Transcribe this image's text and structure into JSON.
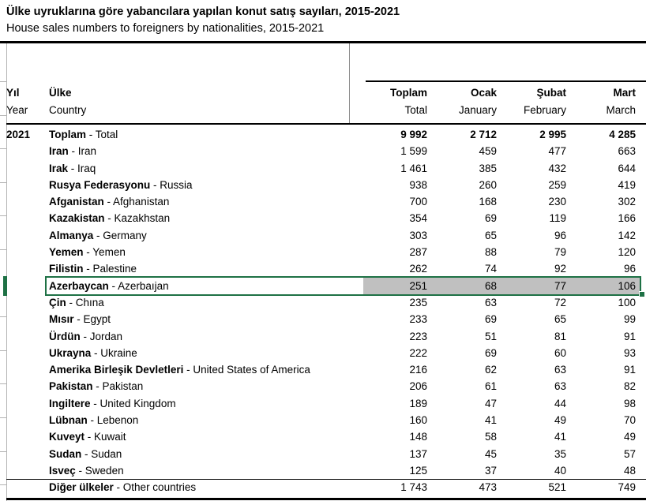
{
  "header": {
    "title_tr": "Ülke uyruklarına göre yabancılara yapılan konut satış sayıları, 2015-2021",
    "title_en": "House sales numbers to foreigners by nationalities, 2015-2021"
  },
  "table": {
    "col_year": {
      "tr": "Yıl",
      "en": "Year"
    },
    "col_country": {
      "tr": "Ülke",
      "en": "Country"
    },
    "col_values": [
      {
        "tr": "Toplam",
        "en": "Total"
      },
      {
        "tr": "Ocak",
        "en": "January"
      },
      {
        "tr": "Şubat",
        "en": "February"
      },
      {
        "tr": "Mart",
        "en": "March"
      }
    ],
    "rows": [
      {
        "year": "2021",
        "tr": "Toplam",
        "en": "Total",
        "values": [
          "9 992",
          "2 712",
          "2 995",
          "4 285"
        ],
        "total": true
      },
      {
        "tr": "Iran",
        "en": "Iran",
        "values": [
          "1 599",
          "459",
          "477",
          "663"
        ]
      },
      {
        "tr": "Irak",
        "en": "Iraq",
        "values": [
          "1 461",
          "385",
          "432",
          "644"
        ]
      },
      {
        "tr": "Rusya Federasyonu",
        "en": "Russia",
        "values": [
          "938",
          "260",
          "259",
          "419"
        ]
      },
      {
        "tr": "Afganistan",
        "en": "Afghanistan",
        "values": [
          "700",
          "168",
          "230",
          "302"
        ]
      },
      {
        "tr": "Kazakistan",
        "en": "Kazakhstan",
        "values": [
          "354",
          "69",
          "119",
          "166"
        ]
      },
      {
        "tr": "Almanya",
        "en": "Germany",
        "values": [
          "303",
          "65",
          "96",
          "142"
        ]
      },
      {
        "tr": "Yemen",
        "en": "Yemen",
        "values": [
          "287",
          "88",
          "79",
          "120"
        ]
      },
      {
        "tr": "Filistin",
        "en": "Palestine",
        "values": [
          "262",
          "74",
          "92",
          "96"
        ]
      },
      {
        "tr": "Azerbaycan",
        "en": "Azerbaıjan",
        "values": [
          "251",
          "68",
          "77",
          "106"
        ],
        "selected": true
      },
      {
        "tr": "Çin",
        "en": "Chına",
        "values": [
          "235",
          "63",
          "72",
          "100"
        ]
      },
      {
        "tr": "Mısır",
        "en": "Egypt",
        "values": [
          "233",
          "69",
          "65",
          "99"
        ]
      },
      {
        "tr": "Ürdün",
        "en": "Jordan",
        "values": [
          "223",
          "51",
          "81",
          "91"
        ]
      },
      {
        "tr": "Ukrayna",
        "en": "Ukraine",
        "values": [
          "222",
          "69",
          "60",
          "93"
        ]
      },
      {
        "tr": "Amerika Birleşik Devletleri",
        "en": "United States of America",
        "values": [
          "216",
          "62",
          "63",
          "91"
        ]
      },
      {
        "tr": "Pakistan",
        "en": "Pakistan",
        "values": [
          "206",
          "61",
          "63",
          "82"
        ]
      },
      {
        "tr": "Ingiltere",
        "en": "United Kingdom",
        "values": [
          "189",
          "47",
          "44",
          "98"
        ]
      },
      {
        "tr": "Lübnan",
        "en": "Lebenon",
        "values": [
          "160",
          "41",
          "49",
          "70"
        ]
      },
      {
        "tr": "Kuveyt",
        "en": "Kuwait",
        "values": [
          "148",
          "58",
          "41",
          "49"
        ]
      },
      {
        "tr": "Sudan",
        "en": "Sudan",
        "values": [
          "137",
          "45",
          "35",
          "57"
        ]
      },
      {
        "tr": "Isveç",
        "en": "Sweden",
        "values": [
          "125",
          "37",
          "40",
          "48"
        ]
      },
      {
        "tr": "Diğer ülkeler",
        "en": "Other countries",
        "values": [
          "1 743",
          "473",
          "521",
          "749"
        ],
        "sep_above": true
      }
    ]
  },
  "selection": {
    "selected_country": "Azerbaycan - Azerbaıjan",
    "border_color": "#1e7145",
    "fill_color": "#c0c0c0"
  }
}
